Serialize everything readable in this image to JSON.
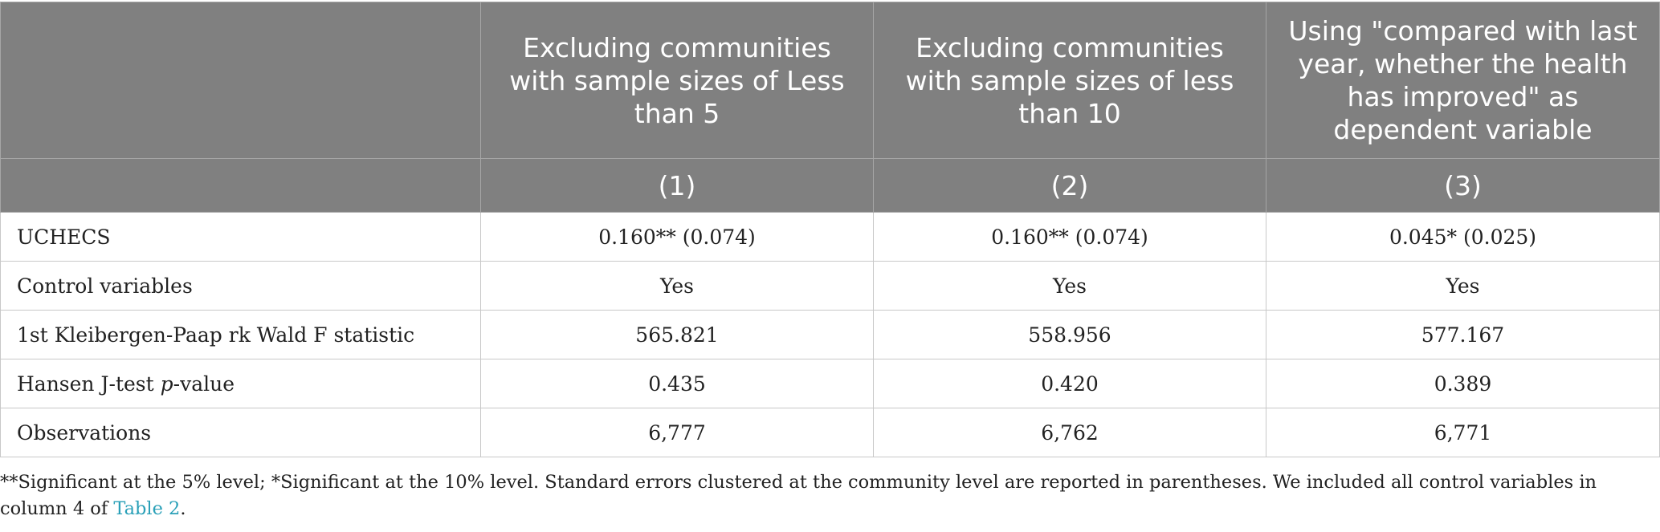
{
  "table": {
    "headers": [
      "",
      "Excluding communities with sample sizes of Less than 5",
      "Excluding communities with sample sizes of less than 10",
      "Using \"compared with last year, whether the health has improved\" as dependent variable"
    ],
    "column_numbers": [
      "",
      "(1)",
      "(2)",
      "(3)"
    ],
    "rows": [
      {
        "label": "UCHECS",
        "values": [
          "0.160** (0.074)",
          "0.160** (0.074)",
          "0.045* (0.025)"
        ]
      },
      {
        "label": "Control variables",
        "values": [
          "Yes",
          "Yes",
          "Yes"
        ]
      },
      {
        "label": "1st Kleibergen-Paap rk Wald F statistic",
        "values": [
          "565.821",
          "558.956",
          "577.167"
        ]
      },
      {
        "label_prefix": "Hansen J-test ",
        "label_italic": "p",
        "label_suffix": "-value",
        "values": [
          "0.435",
          "0.420",
          "0.389"
        ]
      },
      {
        "label": "Observations",
        "values": [
          "6,777",
          "6,762",
          "6,771"
        ]
      }
    ]
  },
  "footnote": {
    "text": "**Significant at the 5% level; *Significant at the 10% level. Standard errors clustered at the community level are reported in parentheses. We included all control variables in column 4 of",
    "link_text": "Table 2",
    "tail": "."
  },
  "colors": {
    "header_bg": "#808080",
    "header_text": "#ffffff",
    "link": "#2aa0b8"
  }
}
